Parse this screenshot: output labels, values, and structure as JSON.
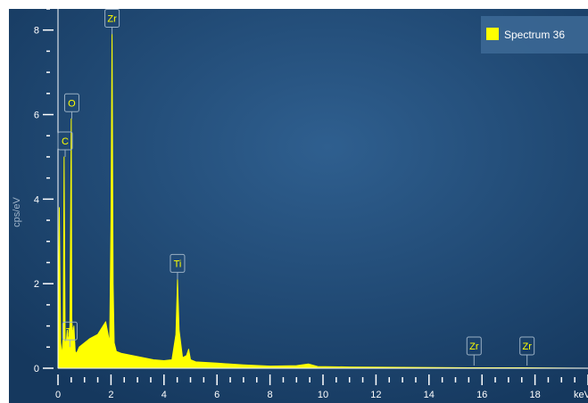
{
  "chart_data": {
    "type": "line",
    "ylabel": "cps/eV",
    "xunit": "keV",
    "xlim": [
      0,
      20
    ],
    "ylim": [
      0,
      8.5
    ],
    "x_ticks": [
      0,
      2,
      4,
      6,
      8,
      10,
      12,
      14,
      16,
      18
    ],
    "y_ticks": [
      0,
      2,
      4,
      6,
      8
    ],
    "legend": {
      "label": "Spectrum 36",
      "color": "#ffff00",
      "position": "top-right"
    },
    "series": [
      {
        "name": "Spectrum 36",
        "color": "#ffff00",
        "x": [
          0.0,
          0.05,
          0.1,
          0.15,
          0.2,
          0.23,
          0.27,
          0.3,
          0.35,
          0.4,
          0.45,
          0.5,
          0.52,
          0.55,
          0.6,
          0.65,
          0.7,
          0.8,
          1.0,
          1.2,
          1.5,
          1.8,
          1.95,
          2.0,
          2.04,
          2.08,
          2.12,
          2.2,
          2.4,
          2.8,
          3.2,
          3.6,
          4.0,
          4.3,
          4.45,
          4.51,
          4.57,
          4.7,
          4.85,
          4.93,
          5.0,
          5.2,
          6.0,
          7.0,
          8.0,
          9.0,
          9.45,
          9.8,
          11.0,
          13.0,
          15.5,
          17.5,
          20.0
        ],
        "y": [
          0.0,
          3.8,
          0.6,
          0.3,
          0.8,
          5.0,
          0.7,
          0.5,
          0.9,
          0.6,
          1.0,
          5.9,
          1.2,
          0.7,
          1.0,
          0.4,
          0.35,
          0.5,
          0.6,
          0.7,
          0.8,
          1.1,
          0.6,
          3.5,
          7.9,
          2.0,
          0.6,
          0.4,
          0.35,
          0.3,
          0.25,
          0.2,
          0.18,
          0.2,
          0.8,
          2.1,
          0.9,
          0.25,
          0.3,
          0.45,
          0.2,
          0.15,
          0.12,
          0.08,
          0.05,
          0.06,
          0.1,
          0.04,
          0.03,
          0.02,
          0.01,
          0.01,
          0.0
        ]
      }
    ],
    "annotations": [
      {
        "label": "Zr",
        "x": 2.04,
        "y": 7.9
      },
      {
        "label": "O",
        "x": 0.52,
        "y": 5.9
      },
      {
        "label": "C",
        "x": 0.27,
        "y": 5.0
      },
      {
        "label": "Ti",
        "x": 4.51,
        "y": 2.1
      },
      {
        "label": "Ti",
        "x": 0.45,
        "y": 0.5
      },
      {
        "label": "Zr",
        "x": 15.7,
        "y": 0.0
      },
      {
        "label": "Zr",
        "x": 17.7,
        "y": 0.0
      }
    ]
  }
}
